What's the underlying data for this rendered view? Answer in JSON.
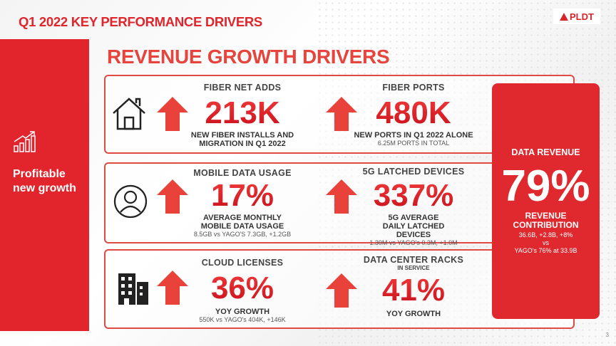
{
  "header": {
    "title": "Q1 2022 KEY PERFORMANCE  DRIVERS",
    "logo": "PLDT"
  },
  "sidebar": {
    "label": "Profitable new growth",
    "icon": "growth-chart-icon"
  },
  "section_title": "REVENUE GROWTH DRIVERS",
  "rows": [
    {
      "icon": "house-icon",
      "metrics": [
        {
          "title": "FIBER NET ADDS",
          "value": "213K",
          "sub": "NEW FIBER INSTALLS AND MIGRATION IN Q1 2022",
          "note": ""
        },
        {
          "title": "FIBER PORTS",
          "value": "480K",
          "sub": "NEW PORTS IN Q1 2022 ALONE",
          "note": "6.25M PORTS IN TOTAL"
        }
      ]
    },
    {
      "icon": "user-icon",
      "metrics": [
        {
          "title": "MOBILE DATA USAGE",
          "value": "17%",
          "sub": "AVERAGE MONTHLY MOBILE DATA USAGE",
          "note": "8.5GB vs YAGO'S 7.3GB, +1.2GB"
        },
        {
          "title": "5G LATCHED DEVICES",
          "value": "337%",
          "sub": "5G AVERAGE DAILY LATCHED DEVICES",
          "note": "1.30M vs YAGO's 0.3M, +1.0M"
        }
      ]
    },
    {
      "icon": "building-icon",
      "metrics": [
        {
          "title": "CLOUD LICENSES",
          "value": "36%",
          "sub": "YOY GROWTH",
          "note": "550K vs YAGO's 404K,  +146K"
        },
        {
          "title": "DATA CENTER RACKS",
          "subtitle": "IN SERVICE",
          "value": "41%",
          "sub": "YOY GROWTH",
          "note": ""
        }
      ]
    }
  ],
  "data_revenue": {
    "title": "DATA REVENUE",
    "value": "79%",
    "label": "REVENUE CONTRIBUTION",
    "detail1": "36.6B, +2.8B, +8%",
    "detail2": "vs",
    "detail3": "YAGO's 76% at 33.9B"
  },
  "page_number": "3",
  "colors": {
    "brand_red": "#e0252c",
    "title_red": "#e5453c"
  }
}
